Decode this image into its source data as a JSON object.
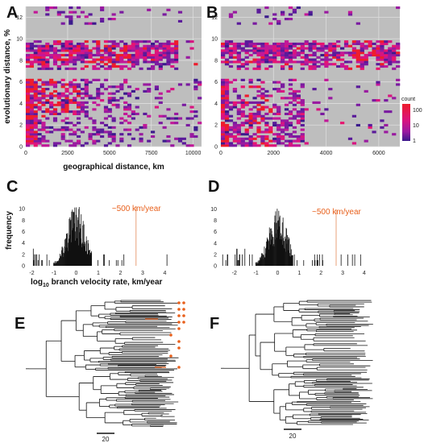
{
  "labels": {
    "A": "A",
    "B": "B",
    "C": "C",
    "D": "D",
    "E": "E",
    "F": "F"
  },
  "chart_data": [
    {
      "id": "A",
      "type": "heatmap",
      "xlabel": "geographical distance, km",
      "ylabel": "evolutionary distance, %",
      "xlim": [
        0,
        10500
      ],
      "ylim": [
        0,
        13
      ],
      "xticks": [
        "0",
        "2500",
        "5000",
        "7500",
        "10000"
      ],
      "yticks": [
        "0",
        "2",
        "4",
        "6",
        "8",
        "10",
        "12"
      ],
      "bands": [
        [
          0,
          1
        ],
        [
          0,
          2
        ],
        [
          0,
          3
        ],
        [
          0,
          4
        ],
        [
          0,
          5
        ],
        [
          0,
          6
        ],
        [
          2,
          4
        ],
        [
          3,
          5
        ],
        [
          5,
          5.5
        ],
        [
          7.5,
          9.5
        ],
        [
          8.5,
          10.5
        ],
        [
          12,
          13
        ]
      ]
    },
    {
      "id": "B",
      "type": "heatmap",
      "xlim": [
        0,
        6800
      ],
      "ylim": [
        0,
        13
      ],
      "xticks": [
        "0",
        "2000",
        "4000",
        "6000"
      ],
      "yticks": [
        "0",
        "2",
        "4",
        "6",
        "8",
        "10",
        "12"
      ],
      "legend": {
        "title": "count",
        "labels": [
          "100",
          "10",
          "1"
        ]
      }
    },
    {
      "id": "C",
      "type": "bar",
      "xlabel_prefix": "log",
      "xlabel_sub": "10",
      "xlabel_rest": " branch velocity rate, km/year",
      "ylabel": "frequency",
      "xlim": [
        -2.2,
        4.2
      ],
      "ylim": [
        0,
        11
      ],
      "xticks": [
        "-2",
        "-1",
        "0",
        "1",
        "2",
        "3",
        "4"
      ],
      "yticks": [
        "0",
        "2",
        "4",
        "6",
        "8",
        "10"
      ],
      "annotation": "~500 km/year",
      "annotation_x": 2.7
    },
    {
      "id": "D",
      "type": "bar",
      "xlim": [
        -2.7,
        4.6
      ],
      "ylim": [
        0,
        10.5
      ],
      "xticks": [
        "-2",
        "-1",
        "0",
        "1",
        "2",
        "3",
        "4"
      ],
      "yticks": [
        "0",
        "2",
        "4",
        "6",
        "8",
        "10"
      ],
      "annotation": "~500 km/year",
      "annotation_x": 2.7
    }
  ],
  "trees": {
    "E": {
      "scale": "20"
    },
    "F": {
      "scale": "20"
    }
  },
  "colors": {
    "panel_bg": "#bebebe",
    "grid": "#dedede",
    "accent": "#e8601c",
    "low": "#3b1a8c",
    "mid": "#9a1aa0",
    "high": "#ee1c2c"
  }
}
